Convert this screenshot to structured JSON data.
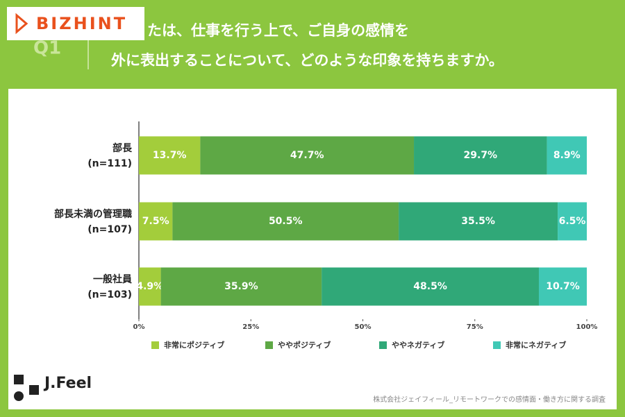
{
  "header": {
    "logo": "BIZHINT",
    "question_number": "Q1",
    "question_lines": [
      "たは、仕事を行う上で、ご自身の感情を",
      "外に表出することについて、どのような印象を持ちますか。"
    ]
  },
  "chart_data": {
    "type": "stacked-barh",
    "categories": [
      "部長",
      "部長未満の管理職",
      "一般社員"
    ],
    "category_sublabels": [
      "(n=111)",
      "(n=107)",
      "(n=103)"
    ],
    "series": [
      {
        "name": "非常にポジティブ",
        "color": "#a3cd3b",
        "values": [
          13.7,
          7.5,
          4.9
        ],
        "value_labels": [
          "13.7%",
          "7.5%",
          "4.9%"
        ]
      },
      {
        "name": "ややポジティブ",
        "color": "#5ea845",
        "values": [
          47.7,
          50.5,
          35.9
        ],
        "value_labels": [
          "47.7%",
          "50.5%",
          "35.9%"
        ]
      },
      {
        "name": "ややネガティブ",
        "color": "#30a878",
        "values": [
          29.7,
          35.5,
          48.5
        ],
        "value_labels": [
          "29.7%",
          "35.5%",
          "48.5%"
        ]
      },
      {
        "name": "非常にネガティブ",
        "color": "#40c8b5",
        "values": [
          8.9,
          6.5,
          10.7
        ],
        "value_labels": [
          "8.9%",
          "6.5%",
          "10.7%"
        ]
      }
    ],
    "xlim": [
      0,
      100
    ],
    "xticks": [
      {
        "value": 0,
        "label": "0%"
      },
      {
        "value": 25,
        "label": "25%"
      },
      {
        "value": 50,
        "label": "50%"
      },
      {
        "value": 75,
        "label": "75%"
      },
      {
        "value": 100,
        "label": "100%"
      }
    ]
  },
  "footer": {
    "brand": "J.Feel",
    "source": "株式会社ジェイフィール_リモートワークでの感情面・働き方に関する調査"
  }
}
